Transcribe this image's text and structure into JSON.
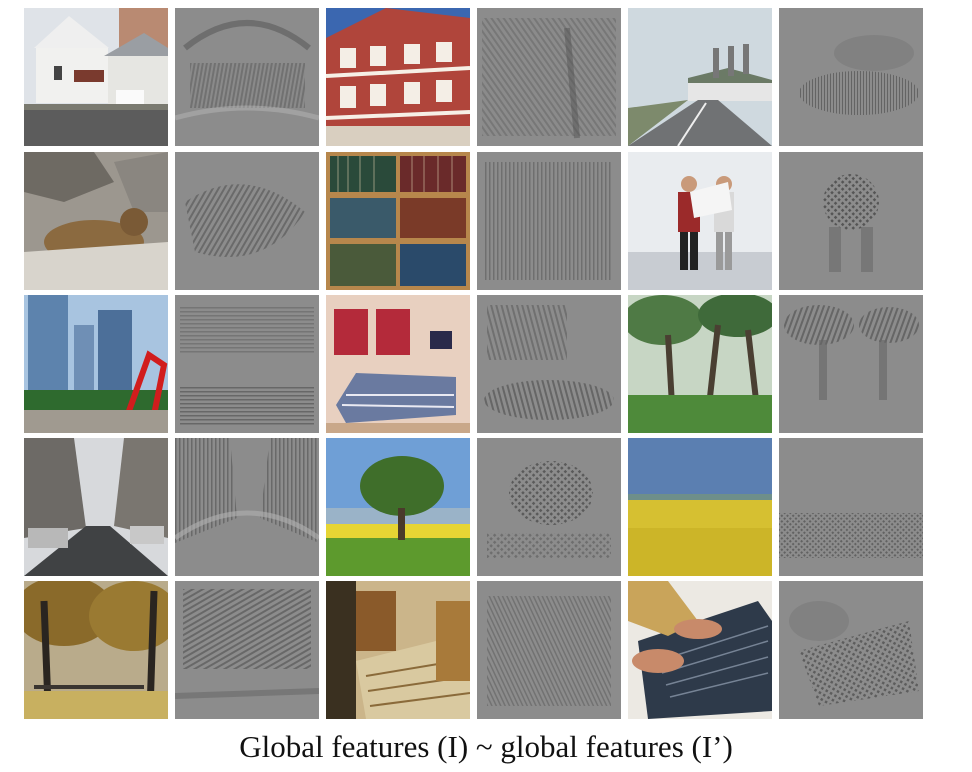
{
  "caption": "Global features (I) ~ global features (I’)",
  "columns": 6,
  "rows": 5,
  "tiles": [
    {
      "scene": "white-house-church",
      "kind": "photo"
    },
    {
      "scene": "white-house-church",
      "kind": "feature-visualization"
    },
    {
      "scene": "timber-frame-building",
      "kind": "photo"
    },
    {
      "scene": "timber-frame-building",
      "kind": "feature-visualization"
    },
    {
      "scene": "highway-with-flags",
      "kind": "photo"
    },
    {
      "scene": "highway-with-flags",
      "kind": "feature-visualization"
    },
    {
      "scene": "marmot-on-rocks",
      "kind": "photo"
    },
    {
      "scene": "marmot-on-rocks",
      "kind": "feature-visualization"
    },
    {
      "scene": "bookshelf",
      "kind": "photo"
    },
    {
      "scene": "bookshelf",
      "kind": "feature-visualization"
    },
    {
      "scene": "two-men-with-blueprint",
      "kind": "photo"
    },
    {
      "scene": "two-men-with-blueprint",
      "kind": "feature-visualization"
    },
    {
      "scene": "skyscrapers-red-sculpture",
      "kind": "photo"
    },
    {
      "scene": "skyscrapers-red-sculpture",
      "kind": "feature-visualization"
    },
    {
      "scene": "bedroom",
      "kind": "photo"
    },
    {
      "scene": "bedroom",
      "kind": "feature-visualization"
    },
    {
      "scene": "forest",
      "kind": "photo"
    },
    {
      "scene": "forest",
      "kind": "feature-visualization"
    },
    {
      "scene": "city-street-cars",
      "kind": "photo"
    },
    {
      "scene": "city-street-cars",
      "kind": "feature-visualization"
    },
    {
      "scene": "tree-in-meadow",
      "kind": "photo"
    },
    {
      "scene": "tree-in-meadow",
      "kind": "feature-visualization"
    },
    {
      "scene": "yellow-field-blue-sky",
      "kind": "photo"
    },
    {
      "scene": "yellow-field-blue-sky",
      "kind": "feature-visualization"
    },
    {
      "scene": "autumn-park",
      "kind": "photo"
    },
    {
      "scene": "autumn-park",
      "kind": "feature-visualization"
    },
    {
      "scene": "wooden-staircase",
      "kind": "photo"
    },
    {
      "scene": "wooden-staircase",
      "kind": "feature-visualization"
    },
    {
      "scene": "hands-on-laptop-keyboard",
      "kind": "photo"
    },
    {
      "scene": "hands-on-laptop-keyboard",
      "kind": "feature-visualization"
    }
  ]
}
